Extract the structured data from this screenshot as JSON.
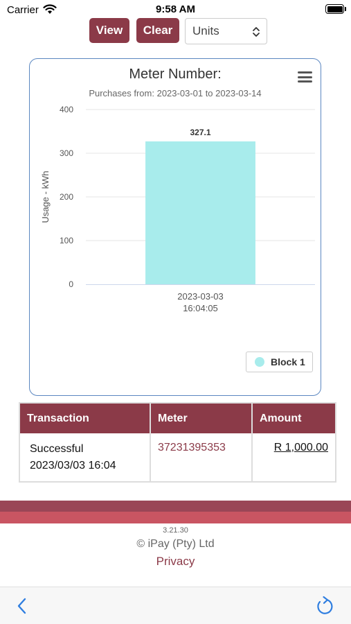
{
  "status_bar": {
    "carrier": "Carrier",
    "time": "9:58 AM",
    "icons": [
      "wifi-icon",
      "battery-icon"
    ]
  },
  "toolbar": {
    "view_label": "View",
    "clear_label": "Clear",
    "units_selected": "Units",
    "accent_color": "#8b3a48"
  },
  "chart": {
    "menu_icon": "hamburger-menu-icon",
    "legend_label": "Block 1"
  },
  "chart_data": {
    "type": "bar",
    "title": "Meter Number:",
    "subtitle": "Purchases from: 2023-03-01 to 2023-03-14",
    "categories": [
      "2023-03-03 16:04:05"
    ],
    "category_lines": [
      [
        "2023-03-03",
        "16:04:05"
      ]
    ],
    "series": [
      {
        "name": "Block 1",
        "values": [
          327.1
        ],
        "color": "#a8ecec"
      }
    ],
    "data_labels": [
      "327.1"
    ],
    "xlabel": "",
    "ylabel": "Usage - kWh",
    "ylim": [
      0,
      400
    ],
    "yticks": [
      0,
      100,
      200,
      300,
      400
    ],
    "ytick_labels": [
      "0",
      "100",
      "200",
      "300",
      "400"
    ],
    "grid": true,
    "legend_position": "bottom-right"
  },
  "table": {
    "headers": [
      "Transaction",
      "Meter",
      "Amount"
    ],
    "rows": [
      {
        "status": "Successful",
        "datetime": "2023/03/03 16:04",
        "meter": "37231395353",
        "amount": "R 1,000.00"
      }
    ]
  },
  "footer": {
    "version": "3.21.30",
    "copyright": "© iPay (Pty) Ltd",
    "privacy": "Privacy"
  },
  "bottom_nav": {
    "icons": [
      "back-icon",
      "reload-icon"
    ]
  }
}
